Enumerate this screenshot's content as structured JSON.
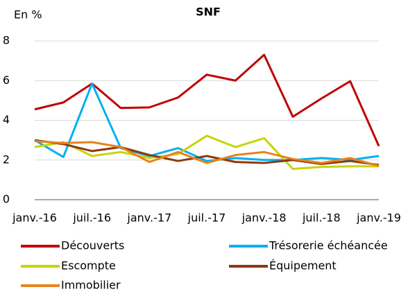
{
  "chart_data": {
    "type": "line",
    "title": "SNF",
    "y_label": "En %",
    "categories": [
      "janv.-16",
      null,
      "juil.-16",
      null,
      "janv.-17",
      null,
      "juil.-17",
      null,
      "janv.-18",
      null,
      "juil.-18",
      null,
      "janv.-19"
    ],
    "series": [
      {
        "name": "Découverts",
        "color": "#c00000",
        "values": [
          4.55,
          4.9,
          5.85,
          4.62,
          4.65,
          5.15,
          6.3,
          6.0,
          7.3,
          4.18,
          5.1,
          5.97,
          2.7
        ]
      },
      {
        "name": "Trésorerie échéancée",
        "color": "#00b0f0",
        "values": [
          3.0,
          2.15,
          5.85,
          2.6,
          2.2,
          2.6,
          1.95,
          2.1,
          2.0,
          2.0,
          2.1,
          2.0,
          2.2
        ]
      },
      {
        "name": "Escompte",
        "color": "#c8d400",
        "values": [
          2.65,
          2.9,
          2.2,
          2.4,
          2.1,
          2.3,
          3.22,
          2.65,
          3.1,
          1.55,
          1.65,
          1.68,
          1.68
        ]
      },
      {
        "name": "Équipement",
        "color": "#8b3a0f",
        "values": [
          3.0,
          2.8,
          2.45,
          2.65,
          2.25,
          1.95,
          2.2,
          1.9,
          1.85,
          2.0,
          1.8,
          1.95,
          1.75
        ]
      },
      {
        "name": "Immobilier",
        "color": "#e8821e",
        "values": [
          2.95,
          2.85,
          2.9,
          2.65,
          1.9,
          2.4,
          1.85,
          2.25,
          2.4,
          2.05,
          1.85,
          2.1,
          1.7
        ]
      }
    ],
    "ylim": [
      0,
      8
    ],
    "yticks": [
      0,
      2,
      4,
      6,
      8
    ],
    "grid": true
  }
}
